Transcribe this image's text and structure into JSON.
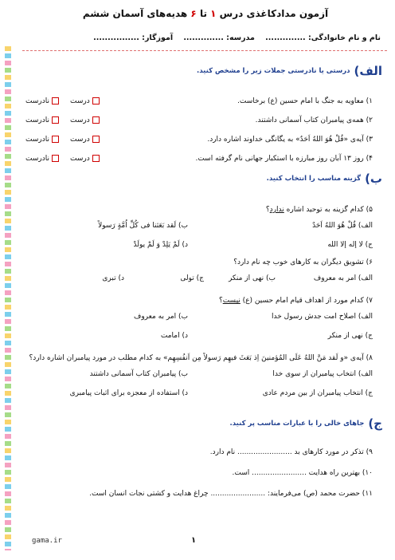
{
  "title": [
    "آزمون مدادکاغذی درس",
    "۱",
    "تا",
    "۶",
    "هدیه‌های آسمان ششم"
  ],
  "header": [
    "نام و نام خانوادگی: ..............",
    "مدرسه: ..............",
    "آموزگار: ................"
  ],
  "sections": [
    {
      "label": "الف)",
      "instruction": "درستی یا نادرستی جملات زیر را مشخص کنید.",
      "options": [
        "درست",
        "نادرست"
      ],
      "items": [
        "۱) معاویه به جنگ با امام حسین (ع) برخاست.",
        "۲) همه‌ی پیامبران کتاب آسمانی داشتند.",
        "۳) آیه‌ی «قُلْ هُوَ اللهُ اَحَدٌ» به یگانگی خداوند اشاره دارد.",
        "۴) روز ۱۳ آبان روز مبارزه با استکبار جهانی نام گرفته است."
      ]
    },
    {
      "label": "ب)",
      "instruction": "گزینه مناسب را انتخاب کنید.",
      "questions": [
        {
          "text": [
            "۵) کدام گزینه به توحید اشاره ",
            "ندارد",
            "؟"
          ],
          "choices": [
            "الف) قُلْ هُوَ اللهُ اَحَدٌ",
            "ب) لَقد بَعَثنا فی کُلِّ اُمَّةٍ رَسولاً",
            "ج) لا إله إلا الله",
            "د) لَمْ یَلِدْ وَ لَمْ یولَدْ"
          ]
        },
        {
          "text": [
            "۶) تشویق دیگران به کارهای خوب چه نام دارد؟"
          ],
          "choices": [
            "الف) امر به معروف",
            "ب) نهی از منکر",
            "ج) تولی",
            "د) تبری"
          ]
        },
        {
          "text": [
            "۷) کدام مورد از اهداف قیام امام حسین (ع) ",
            "نیست",
            "؟"
          ],
          "choices": [
            "الف) اصلاح امت جدش رسول خدا",
            "ب) امر به معروف",
            "ج) نهی از منکر",
            "د) امامت"
          ]
        },
        {
          "text": [
            "۸) آیه‌ی «و لَقد مَنَّ اللهُ عَلَی المُؤمنینَ اِذ بَعَثَ فیهِم رَسولاً مِن اَنفُسِهِم» به کدام مطلب در مورد پیامبران اشاره دارد؟"
          ],
          "choices": [
            "الف) انتخاب پیامبران از سوی خدا",
            "ب) پیامبران کتاب آسمانی داشتند",
            "ج) انتخاب پیامبران از بین مردم عادی",
            "د) استفاده از معجزه برای اثبات پیامبری"
          ]
        }
      ]
    },
    {
      "label": "ج)",
      "instruction": "جاهای خالی را با عبارات مناسب پر کنید.",
      "items": [
        "۹) تذکر در مورد کارهای بد ........................ نام دارد.",
        "۱۰) بهترین راه هدایت ........................ است.",
        "۱۱) حضرت محمد (ص) می‌فرمایند: ........................ چراغ هدایت و کشتی نجات انسان است."
      ]
    }
  ],
  "footer": {
    "site": "gama.ir",
    "page": "۱"
  }
}
